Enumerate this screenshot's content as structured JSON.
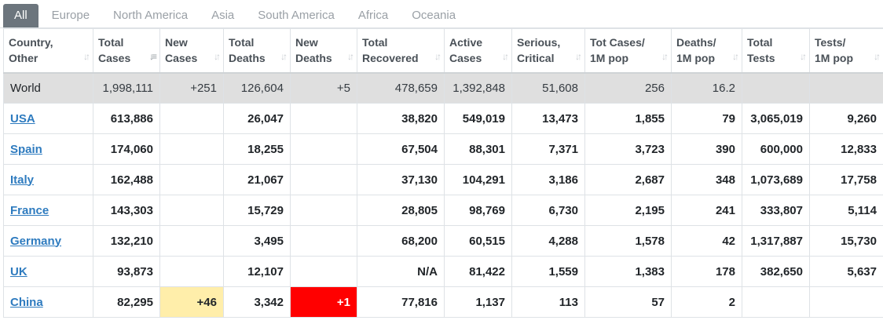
{
  "tabs": [
    {
      "label": "All",
      "active": true
    },
    {
      "label": "Europe",
      "active": false
    },
    {
      "label": "North America",
      "active": false
    },
    {
      "label": "Asia",
      "active": false
    },
    {
      "label": "South America",
      "active": false
    },
    {
      "label": "Africa",
      "active": false
    },
    {
      "label": "Oceania",
      "active": false
    }
  ],
  "columns": [
    {
      "line1": "Country,",
      "line2": "Other"
    },
    {
      "line1": "Total",
      "line2": "Cases"
    },
    {
      "line1": "New",
      "line2": "Cases"
    },
    {
      "line1": "Total",
      "line2": "Deaths"
    },
    {
      "line1": "New",
      "line2": "Deaths"
    },
    {
      "line1": "Total",
      "line2": "Recovered"
    },
    {
      "line1": "Active",
      "line2": "Cases"
    },
    {
      "line1": "Serious,",
      "line2": "Critical"
    },
    {
      "line1": "Tot Cases/",
      "line2": "1M pop"
    },
    {
      "line1": "Deaths/",
      "line2": "1M pop"
    },
    {
      "line1": "Total",
      "line2": "Tests"
    },
    {
      "line1": "Tests/",
      "line2": "1M pop"
    }
  ],
  "sorted_column_index": 1,
  "colors": {
    "new_cases_highlight": "#ffeeaa",
    "new_deaths_highlight": "#ff0000",
    "link": "#2e7bbf",
    "world_row_bg": "#dfdfdf",
    "active_tab_bg": "#6c757d"
  },
  "world": {
    "country": "World",
    "total_cases": "1,998,111",
    "new_cases": "+251",
    "total_deaths": "126,604",
    "new_deaths": "+5",
    "total_recovered": "478,659",
    "active_cases": "1,392,848",
    "serious_critical": "51,608",
    "tot_cases_per_1m": "256",
    "deaths_per_1m": "16.2",
    "total_tests": "",
    "tests_per_1m": ""
  },
  "rows": [
    {
      "country": "USA",
      "total_cases": "613,886",
      "new_cases": "",
      "total_deaths": "26,047",
      "new_deaths": "",
      "total_recovered": "38,820",
      "active_cases": "549,019",
      "serious_critical": "13,473",
      "tot_cases_per_1m": "1,855",
      "deaths_per_1m": "79",
      "total_tests": "3,065,019",
      "tests_per_1m": "9,260"
    },
    {
      "country": "Spain",
      "total_cases": "174,060",
      "new_cases": "",
      "total_deaths": "18,255",
      "new_deaths": "",
      "total_recovered": "67,504",
      "active_cases": "88,301",
      "serious_critical": "7,371",
      "tot_cases_per_1m": "3,723",
      "deaths_per_1m": "390",
      "total_tests": "600,000",
      "tests_per_1m": "12,833"
    },
    {
      "country": "Italy",
      "total_cases": "162,488",
      "new_cases": "",
      "total_deaths": "21,067",
      "new_deaths": "",
      "total_recovered": "37,130",
      "active_cases": "104,291",
      "serious_critical": "3,186",
      "tot_cases_per_1m": "2,687",
      "deaths_per_1m": "348",
      "total_tests": "1,073,689",
      "tests_per_1m": "17,758"
    },
    {
      "country": "France",
      "total_cases": "143,303",
      "new_cases": "",
      "total_deaths": "15,729",
      "new_deaths": "",
      "total_recovered": "28,805",
      "active_cases": "98,769",
      "serious_critical": "6,730",
      "tot_cases_per_1m": "2,195",
      "deaths_per_1m": "241",
      "total_tests": "333,807",
      "tests_per_1m": "5,114"
    },
    {
      "country": "Germany",
      "total_cases": "132,210",
      "new_cases": "",
      "total_deaths": "3,495",
      "new_deaths": "",
      "total_recovered": "68,200",
      "active_cases": "60,515",
      "serious_critical": "4,288",
      "tot_cases_per_1m": "1,578",
      "deaths_per_1m": "42",
      "total_tests": "1,317,887",
      "tests_per_1m": "15,730"
    },
    {
      "country": "UK",
      "total_cases": "93,873",
      "new_cases": "",
      "total_deaths": "12,107",
      "new_deaths": "",
      "total_recovered": "N/A",
      "active_cases": "81,422",
      "serious_critical": "1,559",
      "tot_cases_per_1m": "1,383",
      "deaths_per_1m": "178",
      "total_tests": "382,650",
      "tests_per_1m": "5,637"
    },
    {
      "country": "China",
      "total_cases": "82,295",
      "new_cases": "+46",
      "total_deaths": "3,342",
      "new_deaths": "+1",
      "total_recovered": "77,816",
      "active_cases": "1,137",
      "serious_critical": "113",
      "tot_cases_per_1m": "57",
      "deaths_per_1m": "2",
      "total_tests": "",
      "tests_per_1m": ""
    }
  ]
}
